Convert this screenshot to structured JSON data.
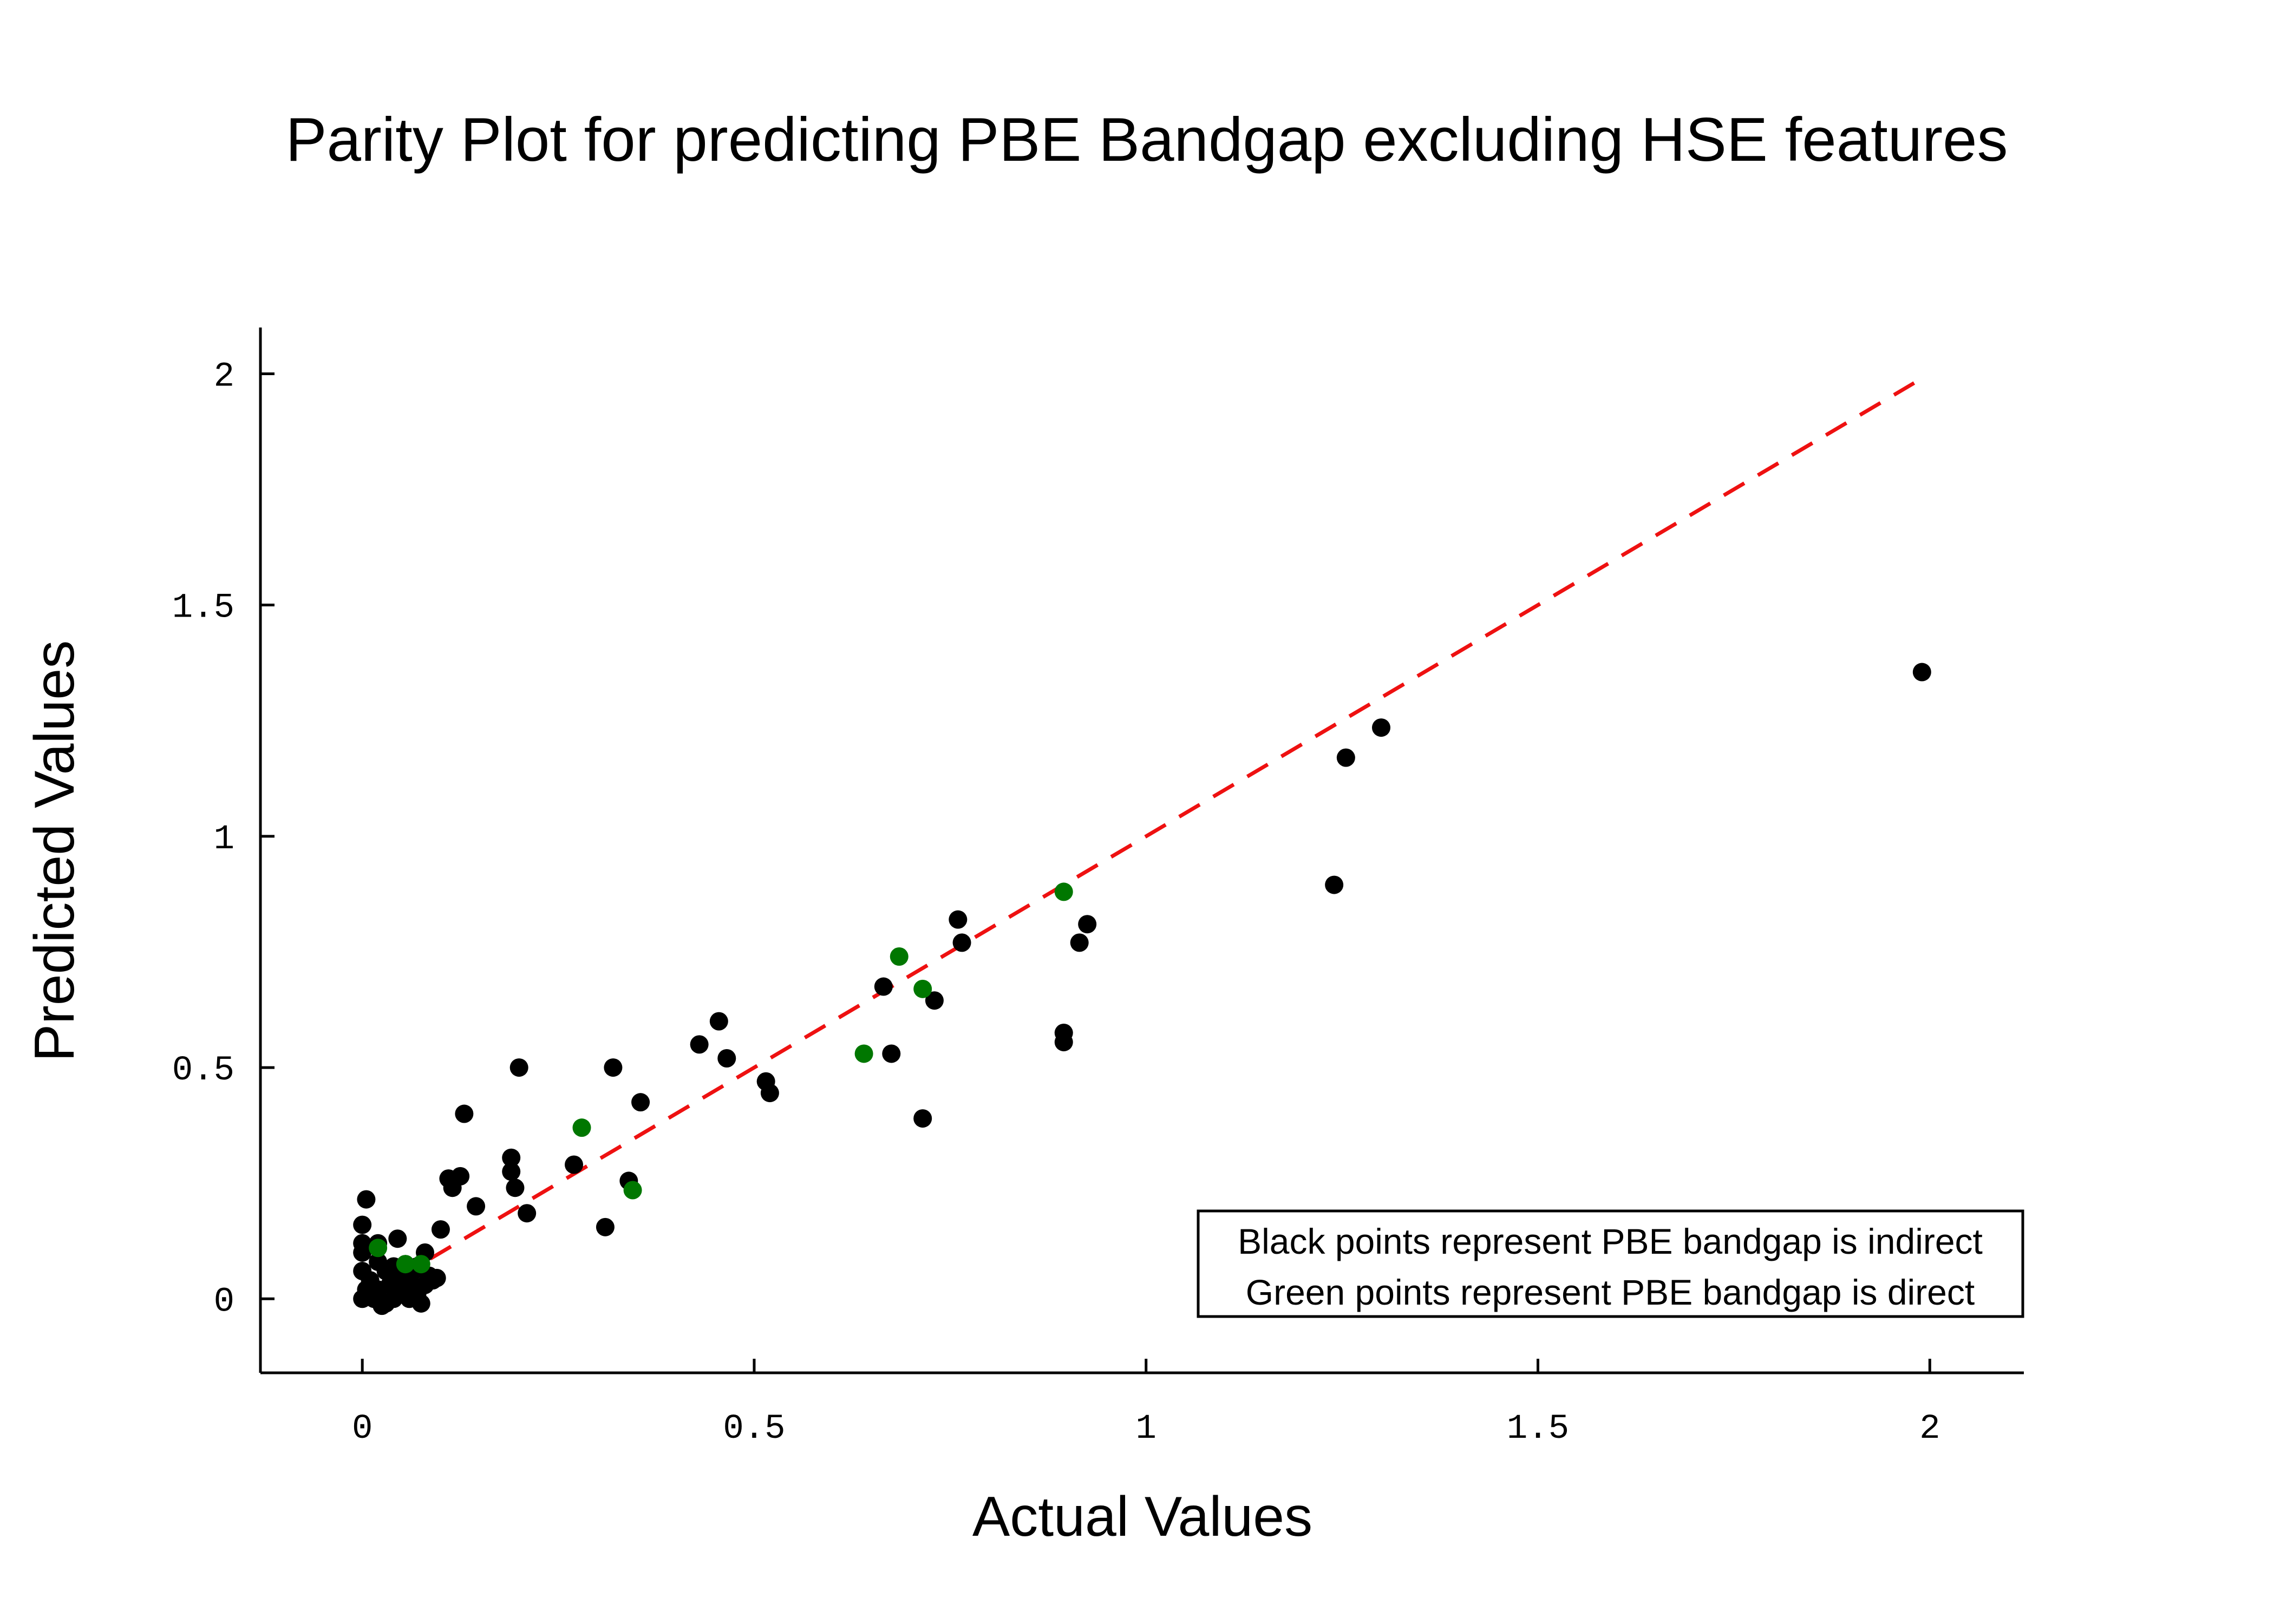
{
  "chart_data": {
    "type": "scatter",
    "title": "Parity Plot for predicting PBE Bandgap excluding HSE features",
    "xlabel": "Actual Values",
    "ylabel": "Predicted Values",
    "xlim": [
      -0.13,
      2.12
    ],
    "ylim": [
      -0.16,
      2.1
    ],
    "xticks": [
      0,
      0.5,
      1,
      1.5,
      2
    ],
    "xtick_labels": [
      "0",
      "0.5",
      "1",
      "1.5",
      "2"
    ],
    "yticks": [
      0,
      0.5,
      1,
      1.5,
      2
    ],
    "ytick_labels": [
      "0",
      "0.5",
      "1",
      "1.5",
      "2"
    ],
    "grid": false,
    "parity_line": {
      "x": [
        0,
        1.98
      ],
      "y": [
        0,
        1.98
      ],
      "color": "#ee1111",
      "style": "dashed"
    },
    "annotation": {
      "lines": [
        "Black points represent PBE bandgap is indirect",
        "Green points represent PBE bandgap is direct"
      ],
      "placement": "bottom-right"
    },
    "series": [
      {
        "color": "#000000",
        "points": [
          [
            0.0,
            0.0
          ],
          [
            0.005,
            0.02
          ],
          [
            0.01,
            0.04
          ],
          [
            0.0,
            0.06
          ],
          [
            0.02,
            0.02
          ],
          [
            0.015,
            0.0
          ],
          [
            0.03,
            -0.01
          ],
          [
            0.025,
            -0.015
          ],
          [
            0.04,
            0.0
          ],
          [
            0.035,
            0.03
          ],
          [
            0.045,
            0.05
          ],
          [
            0.05,
            0.02
          ],
          [
            0.06,
            0.04
          ],
          [
            0.065,
            0.06
          ],
          [
            0.07,
            0.01
          ],
          [
            0.075,
            -0.01
          ],
          [
            0.08,
            0.03
          ],
          [
            0.085,
            0.05
          ],
          [
            0.09,
            0.04
          ],
          [
            0.02,
            0.08
          ],
          [
            0.03,
            0.06
          ],
          [
            0.055,
            0.075
          ],
          [
            0.0,
            0.1
          ],
          [
            0.0,
            0.12
          ],
          [
            0.0,
            0.16
          ],
          [
            0.005,
            0.215
          ],
          [
            0.02,
            0.12
          ],
          [
            0.045,
            0.13
          ],
          [
            0.07,
            0.07
          ],
          [
            0.08,
            0.1
          ],
          [
            0.01,
            0.03
          ],
          [
            0.06,
            0.0
          ],
          [
            0.04,
            0.07
          ],
          [
            0.095,
            0.045
          ],
          [
            0.1,
            0.15
          ],
          [
            0.11,
            0.26
          ],
          [
            0.115,
            0.24
          ],
          [
            0.125,
            0.265
          ],
          [
            0.13,
            0.4
          ],
          [
            0.145,
            0.2
          ],
          [
            0.19,
            0.305
          ],
          [
            0.19,
            0.275
          ],
          [
            0.195,
            0.24
          ],
          [
            0.2,
            0.5
          ],
          [
            0.21,
            0.185
          ],
          [
            0.27,
            0.29
          ],
          [
            0.31,
            0.155
          ],
          [
            0.32,
            0.5
          ],
          [
            0.34,
            0.255
          ],
          [
            0.355,
            0.425
          ],
          [
            0.43,
            0.55
          ],
          [
            0.455,
            0.6
          ],
          [
            0.465,
            0.52
          ],
          [
            0.515,
            0.47
          ],
          [
            0.52,
            0.445
          ],
          [
            0.665,
            0.675
          ],
          [
            0.675,
            0.53
          ],
          [
            0.715,
            0.39
          ],
          [
            0.73,
            0.645
          ],
          [
            0.76,
            0.82
          ],
          [
            0.765,
            0.77
          ],
          [
            0.895,
            0.575
          ],
          [
            0.895,
            0.555
          ],
          [
            0.915,
            0.77
          ],
          [
            0.925,
            0.81
          ],
          [
            1.24,
            0.895
          ],
          [
            1.255,
            1.17
          ],
          [
            1.3,
            1.235
          ],
          [
            1.99,
            1.355
          ]
        ]
      },
      {
        "color": "#007700",
        "points": [
          [
            0.02,
            0.11
          ],
          [
            0.055,
            0.075
          ],
          [
            0.075,
            0.075
          ],
          [
            0.28,
            0.37
          ],
          [
            0.345,
            0.235
          ],
          [
            0.64,
            0.53
          ],
          [
            0.685,
            0.74
          ],
          [
            0.715,
            0.67
          ],
          [
            0.895,
            0.88
          ]
        ]
      }
    ]
  }
}
